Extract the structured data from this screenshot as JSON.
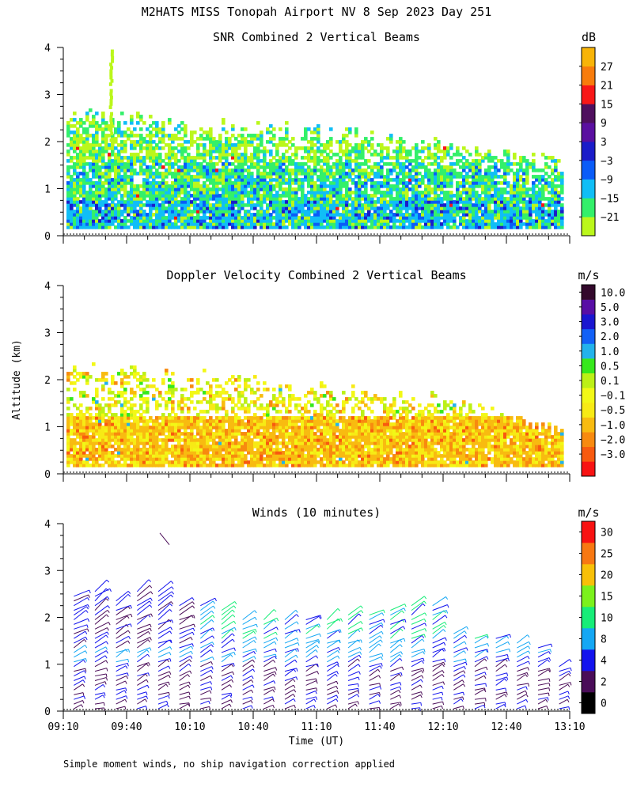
{
  "title": "M2HATS MISS Tonopah Airport NV   8 Sep 2023 Day 251",
  "ylabel": "Altitude (km)",
  "xlabel": "Time (UT)",
  "footnote": "Simple moment winds, no ship navigation correction applied",
  "colors": {
    "snr": [
      "#bbf71b",
      "#33f06a",
      "#10bef6",
      "#0a5cf8",
      "#1b1cc9",
      "#5a0fa0",
      "#4f0f5e",
      "#f81717",
      "#f87c0c",
      "#f8b408"
    ],
    "doppler": [
      "#f81313",
      "#f85a0f",
      "#f88a0f",
      "#f8bb10",
      "#f7ea15",
      "#f2f816",
      "#bcf016",
      "#36e81c",
      "#23b2eb",
      "#1260f6",
      "#1a16d0",
      "#580ea5",
      "#33092c"
    ],
    "winds": [
      "#000000",
      "#4a0c58",
      "#1313ee",
      "#14a7f4",
      "#17ed78",
      "#7bf11c",
      "#f8c008",
      "#f87812",
      "#f81212"
    ]
  },
  "chart_data": [
    {
      "type": "heatmap",
      "title": "SNR Combined 2 Vertical Beams",
      "ylabel": "Altitude (km)",
      "ylim": [
        0,
        4
      ],
      "yticks": [
        "0",
        "1",
        "2",
        "3",
        "4"
      ],
      "x_range_minutes": [
        0,
        240
      ],
      "colorbar": {
        "unit": "dB",
        "labels": [
          "27",
          "21",
          "15",
          "9",
          "3",
          "−3",
          "−9",
          "−15",
          "−21"
        ]
      },
      "field": {
        "top_km": [
          [
            0,
            2.6
          ],
          [
            60,
            2.3
          ],
          [
            120,
            2.2
          ],
          [
            180,
            1.9
          ],
          [
            240,
            1.5
          ]
        ],
        "bottom_km": 0.15,
        "spike": {
          "minute": 22,
          "top_km": 4.0
        }
      }
    },
    {
      "type": "heatmap",
      "title": "Doppler Velocity Combined 2 Vertical Beams",
      "ylabel": "Altitude (km)",
      "ylim": [
        0,
        4
      ],
      "yticks": [
        "0",
        "1",
        "2",
        "3",
        "4"
      ],
      "x_range_minutes": [
        0,
        240
      ],
      "colorbar": {
        "unit": "m/s",
        "labels": [
          "10.0",
          "5.0",
          "3.0",
          "2.0",
          "1.0",
          "0.5",
          "0.1",
          "−0.1",
          "−0.5",
          "−1.0",
          "−2.0",
          "−3.0"
        ]
      },
      "field": {
        "top_km": [
          [
            0,
            2.2
          ],
          [
            60,
            2.1
          ],
          [
            120,
            1.8
          ],
          [
            180,
            1.6
          ],
          [
            240,
            0.8
          ]
        ],
        "bottom_km": 0.15
      }
    },
    {
      "type": "wind-barbs",
      "title": "Winds (10 minutes)",
      "ylabel": "Altitude (km)",
      "xlabel": "Time (UT)",
      "ylim": [
        0,
        4
      ],
      "yticks": [
        "0",
        "1",
        "2",
        "3",
        "4"
      ],
      "x_range_minutes": [
        0,
        240
      ],
      "xticks": [
        "09:10",
        "09:40",
        "10:10",
        "10:40",
        "11:10",
        "11:40",
        "12:10",
        "12:40",
        "13:10"
      ],
      "colorbar": {
        "unit": "m/s",
        "labels": [
          "30",
          "25",
          "20",
          "15",
          "10",
          "8",
          "4",
          "2",
          "0"
        ]
      },
      "profiles": {
        "start_minute": 5,
        "step_minutes": 10,
        "count": 24,
        "top_km": [
          2.5,
          2.6,
          2.4,
          2.6,
          2.6,
          2.3,
          2.3,
          2.2,
          2.0,
          2.0,
          2.0,
          2.0,
          2.0,
          2.1,
          2.1,
          2.2,
          2.3,
          2.3,
          1.7,
          1.6,
          1.6,
          1.5,
          1.4,
          1.0
        ],
        "min_km": 0.05
      }
    }
  ]
}
